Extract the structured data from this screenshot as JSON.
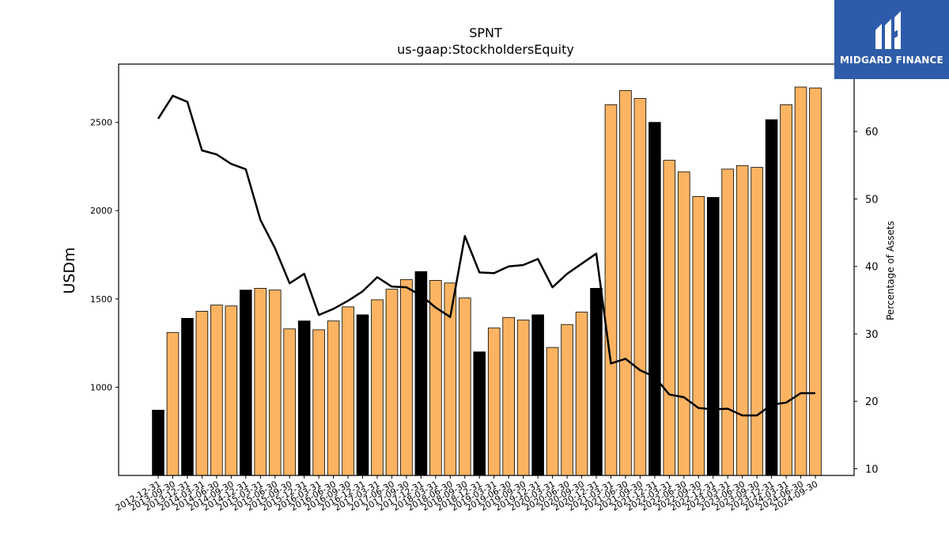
{
  "chart_data": {
    "type": "bar",
    "title": "SPNT",
    "subtitle": "us-gaap:StockholdersEquity",
    "ylabel": "USDm",
    "y2label": "Percentage of Assets",
    "ylim": [
      500,
      2830
    ],
    "y2lim": [
      9,
      70
    ],
    "yticks": [
      1000,
      1500,
      2000,
      2500
    ],
    "y2ticks": [
      10,
      20,
      30,
      40,
      50,
      60
    ],
    "categories": [
      "2012-12-31",
      "2013-09-30",
      "2013-12-31",
      "2014-03-31",
      "2014-06-30",
      "2014-09-30",
      "2014-12-31",
      "2015-03-31",
      "2015-06-30",
      "2015-09-30",
      "2015-12-31",
      "2016-03-31",
      "2016-06-30",
      "2016-09-30",
      "2016-12-31",
      "2017-03-31",
      "2017-06-30",
      "2017-09-30",
      "2017-12-31",
      "2018-03-31",
      "2018-06-30",
      "2018-09-30",
      "2018-12-31",
      "2019-03-31",
      "2019-06-30",
      "2019-09-30",
      "2019-12-31",
      "2020-03-31",
      "2020-06-30",
      "2020-09-30",
      "2020-12-31",
      "2021-03-31",
      "2021-06-30",
      "2021-09-30",
      "2021-12-31",
      "2022-03-31",
      "2022-06-30",
      "2022-09-30",
      "2022-12-31",
      "2023-03-31",
      "2023-06-30",
      "2023-09-30",
      "2023-12-31",
      "2024-03-31",
      "2024-06-30",
      "2024-09-30"
    ],
    "series": [
      {
        "type": "bar",
        "values": [
          870,
          1310,
          1390,
          1430,
          1465,
          1460,
          1550,
          1560,
          1550,
          1330,
          1375,
          1325,
          1375,
          1455,
          1410,
          1495,
          1555,
          1610,
          1655,
          1605,
          1590,
          1505,
          1200,
          1335,
          1395,
          1380,
          1410,
          1225,
          1355,
          1425,
          1560,
          2600,
          2680,
          2635,
          2500,
          2285,
          2220,
          2080,
          2075,
          2235,
          2255,
          2245,
          2515,
          2600,
          2700,
          2695
        ],
        "annual_flags": [
          1,
          0,
          1,
          0,
          0,
          0,
          1,
          0,
          0,
          0,
          1,
          0,
          0,
          0,
          1,
          0,
          0,
          0,
          1,
          0,
          0,
          0,
          1,
          0,
          0,
          0,
          1,
          0,
          0,
          0,
          1,
          0,
          0,
          0,
          1,
          0,
          0,
          0,
          1,
          0,
          0,
          0,
          1,
          0,
          0,
          0
        ]
      },
      {
        "type": "line",
        "axis": "right",
        "values": [
          61.9,
          65.3,
          64.4,
          57.2,
          56.6,
          55.2,
          54.4,
          46.9,
          42.7,
          37.5,
          38.9,
          32.8,
          33.7,
          34.9,
          36.3,
          38.4,
          37.0,
          36.9,
          35.7,
          33.9,
          32.5,
          44.5,
          39.1,
          39.0,
          40.0,
          40.2,
          41.1,
          36.9,
          38.9,
          40.4,
          41.9,
          25.6,
          26.3,
          24.6,
          23.6,
          21.0,
          20.6,
          19.0,
          18.8,
          18.9,
          17.9,
          17.9,
          19.5,
          19.8,
          21.2,
          21.2
        ]
      }
    ],
    "colors": {
      "bar": "#fdb462",
      "bar_annual": "#000000",
      "line": "#000000"
    }
  },
  "logo": {
    "text": "MIDGARD FINANCE"
  }
}
